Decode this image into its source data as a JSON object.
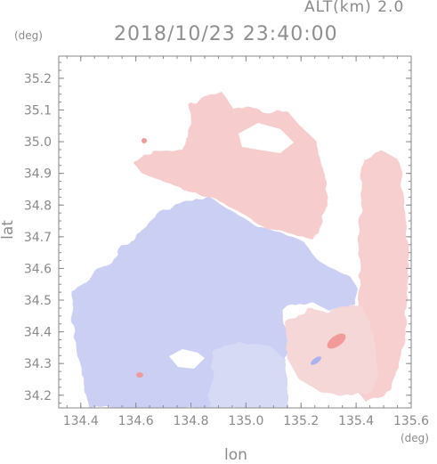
{
  "header": {
    "altitude_label": "ALT(km)",
    "altitude_value": "2.0",
    "timestamp": "2018/10/23 23:40:00"
  },
  "axes": {
    "x_label": "lon",
    "y_label": "lat",
    "x_unit": "(deg)",
    "y_unit": "(deg)",
    "x_ticks": [
      "134.4",
      "134.6",
      "134.8",
      "135.0",
      "135.2",
      "135.4",
      "135.6"
    ],
    "y_ticks": [
      "35.2",
      "35.1",
      "35.0",
      "34.9",
      "34.8",
      "34.7",
      "34.6",
      "34.5",
      "34.4",
      "34.3",
      "34.2"
    ],
    "x_range": [
      134.32,
      135.6
    ],
    "y_range": [
      34.16,
      35.27
    ]
  },
  "colors": {
    "approaching": "#c7ccf5",
    "receding": "#f7c9c9",
    "frame": "#8a8a8a"
  }
}
